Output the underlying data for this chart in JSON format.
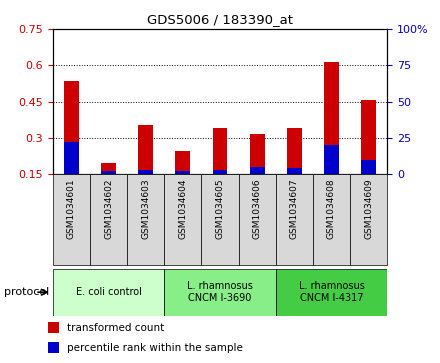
{
  "title": "GDS5006 / 183390_at",
  "samples": [
    "GSM1034601",
    "GSM1034602",
    "GSM1034603",
    "GSM1034604",
    "GSM1034605",
    "GSM1034606",
    "GSM1034607",
    "GSM1034608",
    "GSM1034609"
  ],
  "red_values": [
    0.535,
    0.195,
    0.355,
    0.245,
    0.34,
    0.315,
    0.34,
    0.615,
    0.455
  ],
  "blue_values_pct": [
    22,
    2,
    3,
    2,
    3,
    5,
    4,
    20,
    10
  ],
  "ylim_left": [
    0.15,
    0.75
  ],
  "ylim_right": [
    0,
    100
  ],
  "yticks_left": [
    0.15,
    0.3,
    0.45,
    0.6,
    0.75
  ],
  "yticks_right": [
    0,
    25,
    50,
    75,
    100
  ],
  "protocols": [
    {
      "label": "E. coli control",
      "start": 0,
      "end": 3,
      "color": "#ccffcc"
    },
    {
      "label": "L. rhamnosus\nCNCM I-3690",
      "start": 3,
      "end": 6,
      "color": "#88ee88"
    },
    {
      "label": "L. rhamnosus\nCNCM I-4317",
      "start": 6,
      "end": 9,
      "color": "#44cc44"
    }
  ],
  "legend_items": [
    {
      "label": "transformed count",
      "color": "#cc0000"
    },
    {
      "label": "percentile rank within the sample",
      "color": "#0000cc"
    }
  ],
  "red_color": "#cc0000",
  "blue_color": "#0000cc",
  "left_axis_color": "#cc0000",
  "right_axis_color": "#0000bb",
  "protocol_label": "protocol",
  "baseline": 0.15,
  "bar_width": 0.4,
  "sample_area_bg": "#d8d8d8",
  "fig_width": 4.4,
  "fig_height": 3.63,
  "fig_dpi": 100
}
